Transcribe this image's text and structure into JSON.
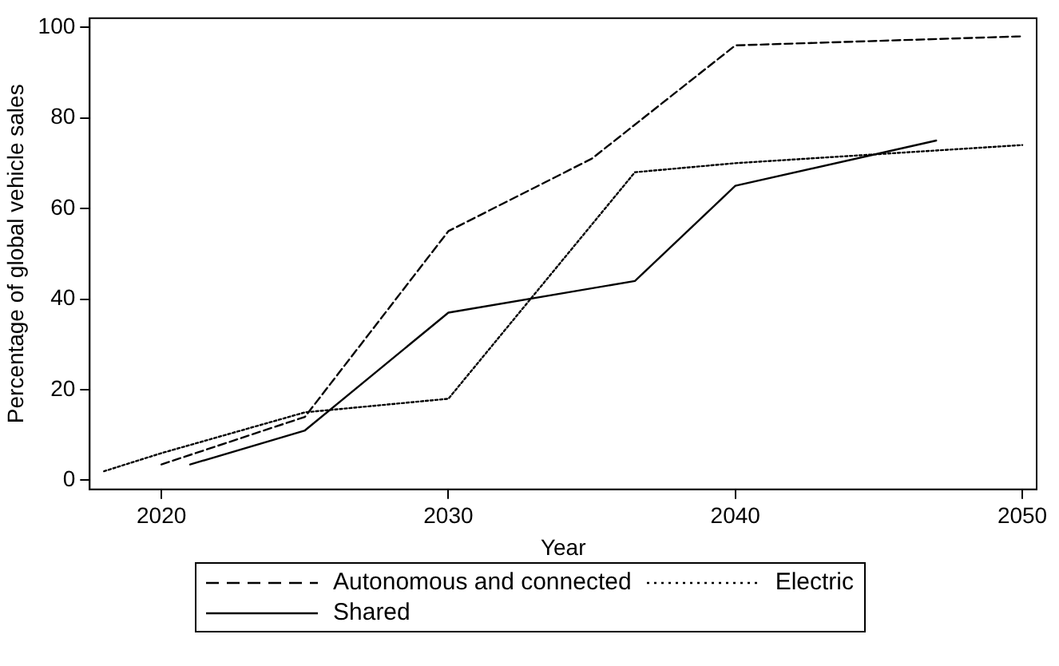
{
  "chart_data": {
    "type": "line",
    "xlabel": "Year",
    "ylabel": "Percentage of global vehicle sales",
    "xlim": [
      2017.5,
      2050.5
    ],
    "xticks": [
      2020,
      2030,
      2040,
      2050
    ],
    "ylim": [
      -2,
      102
    ],
    "yticks": [
      0,
      20,
      40,
      60,
      80,
      100
    ],
    "grid": false,
    "legend": "bottom",
    "marker": "none",
    "series": [
      {
        "name": "Autonomous and connected",
        "color": "#000000",
        "line_style": "dashed",
        "x": [
          2020,
          2025,
          2030,
          2035,
          2040,
          2045,
          2050
        ],
        "values": [
          3.5,
          14,
          55,
          71,
          96,
          97,
          98
        ]
      },
      {
        "name": "Electric",
        "color": "#000000",
        "line_style": "dotted",
        "x": [
          2018,
          2020,
          2025,
          2030,
          2036.5,
          2040,
          2045,
          2050
        ],
        "values": [
          2,
          6,
          15,
          18,
          68,
          70,
          72,
          74
        ]
      },
      {
        "name": "Shared",
        "color": "#000000",
        "line_style": "solid",
        "x": [
          2021,
          2025,
          2030,
          2036.5,
          2040,
          2047
        ],
        "values": [
          3.5,
          11,
          37,
          44,
          65,
          75
        ]
      }
    ]
  }
}
